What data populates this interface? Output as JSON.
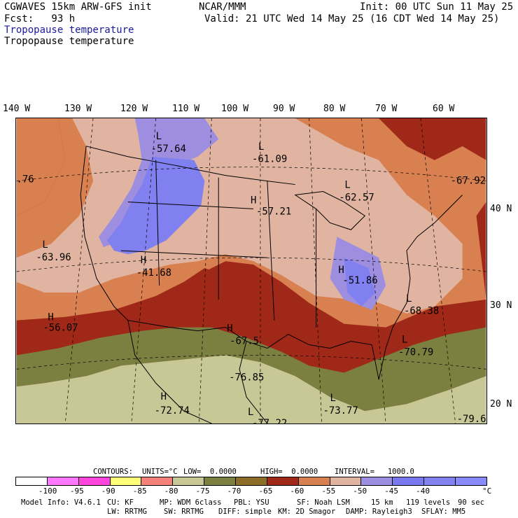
{
  "header": {
    "model": "CGWAVES 15km ARW-GFS init",
    "org": "NCAR/MMM",
    "init": "Init: 00 UTC Sun 11 May 25",
    "fcst": "Fcst:   93 h",
    "valid": "Valid: 21 UTC Wed 14 May 25 (16 CDT Wed 14 May 25)",
    "field1": "Tropopause temperature",
    "field2": "Tropopause temperature"
  },
  "longitudes": [
    "140 W",
    "130 W",
    "120 W",
    "110 W",
    "100 W",
    "90 W",
    "80 W",
    "70 W",
    "60 W"
  ],
  "latitudes": [
    "40 N",
    "30 N",
    "20 N"
  ],
  "map_labels": [
    {
      "type": "L",
      "value": "-57.64"
    },
    {
      "type": "L",
      "value": "-61.09"
    },
    {
      "type": "L",
      "value": "-62.57"
    },
    {
      "type": "",
      "value": "-67.92"
    },
    {
      "type": "",
      "value": ".76"
    },
    {
      "type": "H",
      "value": "-57.21"
    },
    {
      "type": "L",
      "value": "-63.96"
    },
    {
      "type": "H",
      "value": "-41.68"
    },
    {
      "type": "H",
      "value": "-51.86"
    },
    {
      "type": "L",
      "value": "-68.38"
    },
    {
      "type": "H",
      "value": "-56.07"
    },
    {
      "type": "H",
      "value": "-67.5"
    },
    {
      "type": "L",
      "value": "-70.79"
    },
    {
      "type": "",
      "value": "-76.85"
    },
    {
      "type": "H",
      "value": "-72.74"
    },
    {
      "type": "L",
      "value": "-73.77"
    },
    {
      "type": "L",
      "value": "-77.22"
    },
    {
      "type": "",
      "value": "-79.6"
    }
  ],
  "contours": {
    "label": "CONTOURS:",
    "units": "UNITS=°C",
    "low": "LOW=  0.0000",
    "high": "HIGH=  0.0000",
    "interval": "INTERVAL=   1000.0"
  },
  "colorbar": {
    "colors": [
      "#ffffff",
      "#ff78ff",
      "#ff46dc",
      "#ffff78",
      "#f5827a",
      "#c8c896",
      "#7b8040",
      "#8c6e28",
      "#a02818",
      "#d88050",
      "#e0b4a0",
      "#9e8ee0",
      "#7878f0",
      "#8282f0",
      "#8a8aff"
    ],
    "labels": [
      "-100",
      "-95",
      "-90",
      "-85",
      "-80",
      "-75",
      "-70",
      "-65",
      "-60",
      "-55",
      "-50",
      "-45",
      "-40"
    ],
    "unit": "°C"
  },
  "footer": {
    "line1": [
      "Model Info: V4.6.1",
      "CU: KF",
      "MP: WDM 6class",
      "PBL: YSU",
      "SF: Noah LSM",
      "15 km",
      "119 levels",
      "90 sec"
    ],
    "line2": [
      "LW: RRTMG",
      "SW: RRTMG",
      "DIFF: simple",
      "KM: 2D Smagor",
      "DAMP: Rayleigh3",
      "SFLAY: MM5"
    ]
  }
}
